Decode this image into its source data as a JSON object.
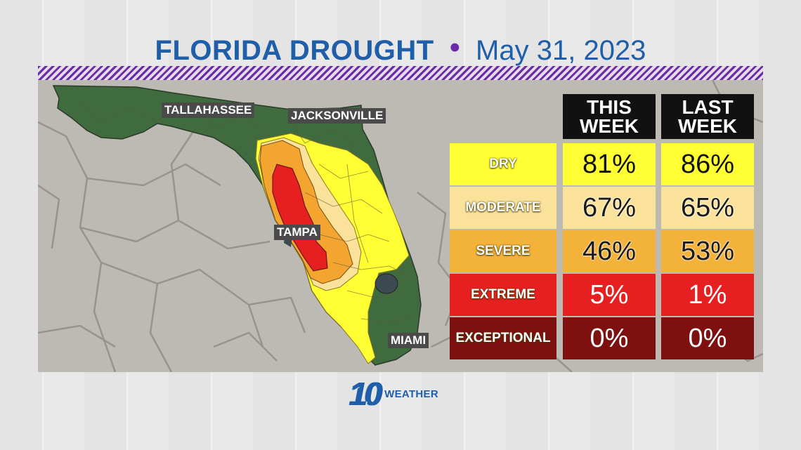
{
  "title": {
    "main": "FLORIDA DROUGHT",
    "separator": "•",
    "date": "May 31, 2023"
  },
  "cities": [
    "TALLAHASSEE",
    "JACKSONVILLE",
    "TAMPA",
    "MIAMI"
  ],
  "table": {
    "headers": {
      "this_week": "THIS WEEK",
      "last_week": "LAST WEEK"
    },
    "rows": [
      {
        "label": "DRY",
        "this_week": "81%",
        "last_week": "86%",
        "color": "#ffff33"
      },
      {
        "label": "MODERATE",
        "this_week": "67%",
        "last_week": "65%",
        "color": "#fbe29a"
      },
      {
        "label": "SEVERE",
        "this_week": "46%",
        "last_week": "53%",
        "color": "#f3b23a"
      },
      {
        "label": "EXTREME",
        "this_week": "5%",
        "last_week": "1%",
        "color": "#e62020"
      },
      {
        "label": "EXCEPTIONAL",
        "this_week": "0%",
        "last_week": "0%",
        "color": "#7e1010"
      }
    ]
  },
  "legend_colors": {
    "normal": "#3f6b3e",
    "dry": "#ffff33",
    "moderate": "#fbe29a",
    "severe": "#f3a530",
    "extreme": "#e62020",
    "water": "#3c4a52"
  },
  "logo": {
    "number": "10",
    "word": "WEATHER"
  }
}
